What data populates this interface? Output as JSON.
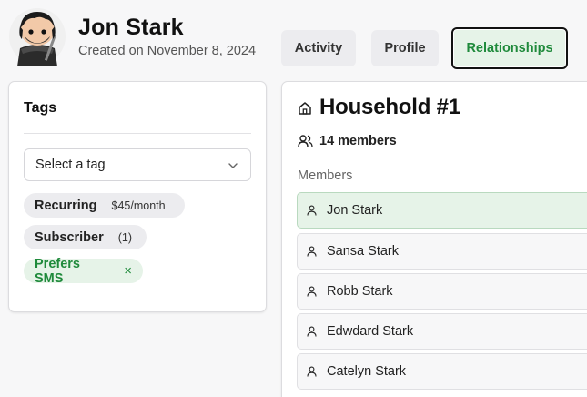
{
  "profile": {
    "name": "Jon Stark",
    "created": "Created on November 8, 2024"
  },
  "tabs": [
    {
      "label": "Activity"
    },
    {
      "label": "Profile"
    },
    {
      "label": "Relationships",
      "active": true
    }
  ],
  "tags_card": {
    "title": "Tags",
    "select_value": "Select a tag",
    "tags": [
      {
        "label": "Recurring",
        "sub": "$45/month"
      },
      {
        "label": "Subscriber",
        "sub": "(1)"
      },
      {
        "label": "Prefers SMS",
        "removable": true
      }
    ]
  },
  "household": {
    "title": "Household #1",
    "member_count": "14 members",
    "members_label": "Members",
    "members": [
      {
        "name": "Jon Stark",
        "active": true
      },
      {
        "name": "Sansa Stark"
      },
      {
        "name": "Robb Stark"
      },
      {
        "name": "Edwdard Stark"
      },
      {
        "name": "Catelyn Stark"
      }
    ]
  },
  "colors": {
    "accent_green": "#1f8a3b",
    "accent_green_bg": "#e6f3e8"
  }
}
